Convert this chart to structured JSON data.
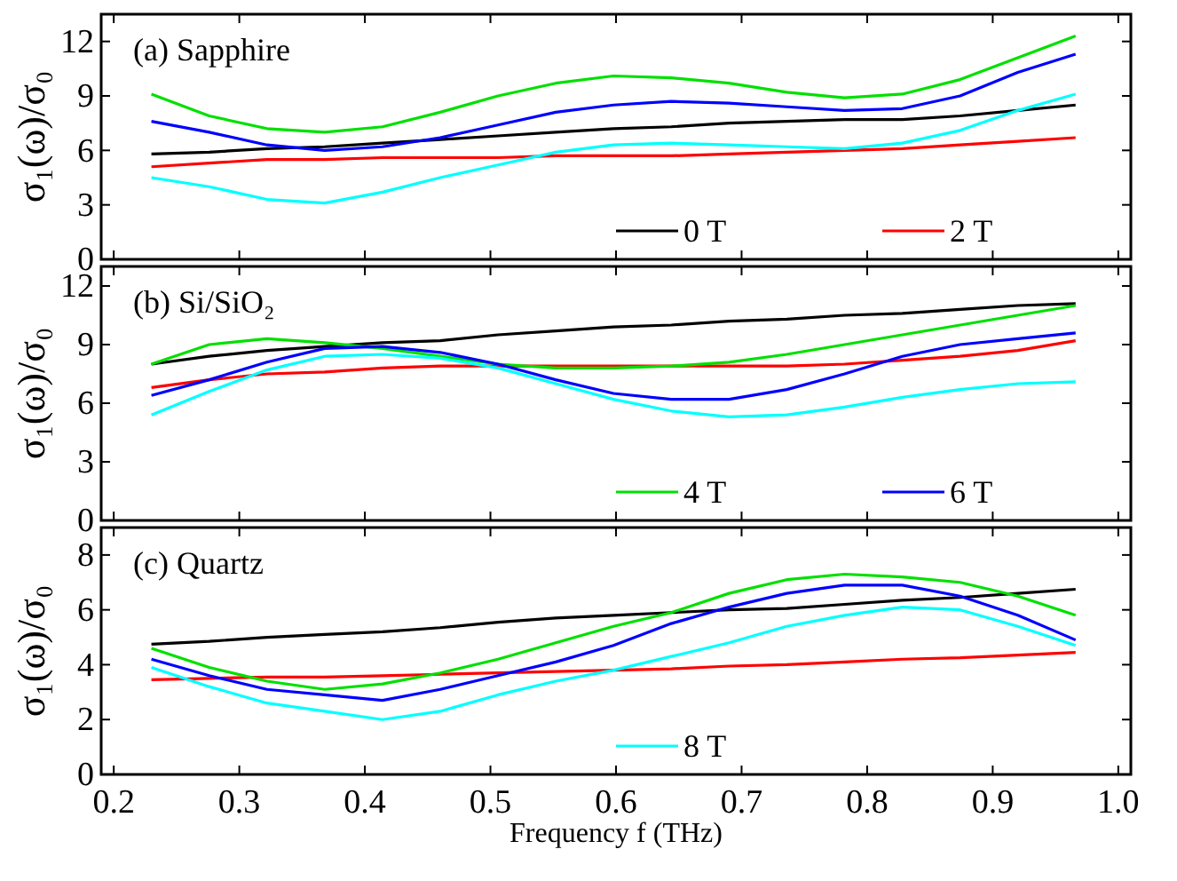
{
  "chart_data": [
    {
      "type": "line",
      "title": "(a)  Sapphire",
      "ylabel": "σ₁(ω)/σ₀",
      "x": [
        0.23,
        0.276,
        0.322,
        0.368,
        0.414,
        0.46,
        0.506,
        0.552,
        0.598,
        0.644,
        0.69,
        0.736,
        0.782,
        0.828,
        0.874,
        0.92,
        0.966
      ],
      "xlim": [
        0.19,
        1.01
      ],
      "xticks": [
        0.2,
        0.3,
        0.4,
        0.5,
        0.6,
        0.7,
        0.8,
        0.9,
        1
      ],
      "ylim": [
        0,
        13.5
      ],
      "yticks": [
        0,
        3,
        6,
        9,
        12
      ],
      "tick_labels": "y",
      "legend": "bottom right",
      "grid": false,
      "marker": "none",
      "line_style": "solid",
      "series": [
        {
          "name": "0 T",
          "color": "#000000",
          "values": [
            5.8,
            5.9,
            6.1,
            6.2,
            6.4,
            6.6,
            6.8,
            7.0,
            7.2,
            7.3,
            7.5,
            7.6,
            7.7,
            7.7,
            7.9,
            8.2,
            8.5
          ]
        },
        {
          "name": "2 T",
          "color": "#ff0000",
          "values": [
            5.1,
            5.3,
            5.5,
            5.5,
            5.6,
            5.6,
            5.6,
            5.7,
            5.7,
            5.7,
            5.8,
            5.9,
            6.0,
            6.1,
            6.3,
            6.5,
            6.7
          ]
        },
        {
          "color": "#00e000",
          "values": [
            9.1,
            7.9,
            7.2,
            7.0,
            7.3,
            8.1,
            9.0,
            9.7,
            10.1,
            10.0,
            9.7,
            9.2,
            8.9,
            9.1,
            9.9,
            11.1,
            12.3
          ]
        },
        {
          "color": "#0000ff",
          "values": [
            7.6,
            7.0,
            6.3,
            6.0,
            6.2,
            6.7,
            7.4,
            8.1,
            8.5,
            8.7,
            8.6,
            8.4,
            8.2,
            8.3,
            9.0,
            10.3,
            11.3
          ]
        },
        {
          "color": "#00ffff",
          "values": [
            4.5,
            4.0,
            3.3,
            3.1,
            3.7,
            4.5,
            5.2,
            5.9,
            6.3,
            6.4,
            6.3,
            6.2,
            6.1,
            6.4,
            7.1,
            8.2,
            9.1
          ]
        }
      ]
    },
    {
      "type": "line",
      "title": "(b)  Si/SiO₂",
      "ylabel": "σ₁(ω)/σ₀",
      "x": [
        0.23,
        0.276,
        0.322,
        0.368,
        0.414,
        0.46,
        0.506,
        0.552,
        0.598,
        0.644,
        0.69,
        0.736,
        0.782,
        0.828,
        0.874,
        0.92,
        0.966
      ],
      "xlim": [
        0.19,
        1.01
      ],
      "xticks": [
        0.2,
        0.3,
        0.4,
        0.5,
        0.6,
        0.7,
        0.8,
        0.9,
        1
      ],
      "ylim": [
        0,
        13
      ],
      "yticks": [
        0,
        3,
        6,
        9,
        12
      ],
      "tick_labels": "y",
      "legend": "bottom right",
      "grid": false,
      "marker": "none",
      "line_style": "solid",
      "series": [
        {
          "color": "#000000",
          "values": [
            8.0,
            8.4,
            8.7,
            8.9,
            9.1,
            9.2,
            9.5,
            9.7,
            9.9,
            10.0,
            10.2,
            10.3,
            10.5,
            10.6,
            10.8,
            11.0,
            11.1
          ]
        },
        {
          "color": "#ff0000",
          "values": [
            6.8,
            7.2,
            7.5,
            7.6,
            7.8,
            7.9,
            7.9,
            7.9,
            7.9,
            7.9,
            7.9,
            7.9,
            8.0,
            8.2,
            8.4,
            8.7,
            9.2
          ]
        },
        {
          "name": "4 T",
          "color": "#00e000",
          "values": [
            8.0,
            9.0,
            9.3,
            9.1,
            8.8,
            8.4,
            8.0,
            7.8,
            7.8,
            7.9,
            8.1,
            8.5,
            9.0,
            9.5,
            10.0,
            10.5,
            11.0
          ]
        },
        {
          "name": "6 T",
          "color": "#0000ff",
          "values": [
            6.4,
            7.2,
            8.1,
            8.8,
            8.9,
            8.6,
            8.0,
            7.2,
            6.5,
            6.2,
            6.2,
            6.7,
            7.5,
            8.4,
            9.0,
            9.3,
            9.6
          ]
        },
        {
          "color": "#00ffff",
          "values": [
            5.4,
            6.6,
            7.7,
            8.4,
            8.5,
            8.3,
            7.8,
            7.0,
            6.2,
            5.6,
            5.3,
            5.4,
            5.8,
            6.3,
            6.7,
            7.0,
            7.1
          ]
        }
      ]
    },
    {
      "type": "line",
      "title": "(c) Quartz",
      "ylabel": "σ₁(ω)/σ₀",
      "xlabel": "Frequency f (THz)",
      "x": [
        0.23,
        0.276,
        0.322,
        0.368,
        0.414,
        0.46,
        0.506,
        0.552,
        0.598,
        0.644,
        0.69,
        0.736,
        0.782,
        0.828,
        0.874,
        0.92,
        0.966
      ],
      "xlim": [
        0.19,
        1.01
      ],
      "xticks": [
        0.2,
        0.3,
        0.4,
        0.5,
        0.6,
        0.7,
        0.8,
        0.9,
        {
          "value": 1.0,
          "label": "1.0"
        }
      ],
      "ylim": [
        0,
        9
      ],
      "yticks": [
        0,
        2,
        4,
        6,
        8
      ],
      "legend": "bottom right",
      "grid": false,
      "marker": "none",
      "line_style": "solid",
      "series": [
        {
          "color": "#000000",
          "values": [
            4.75,
            4.85,
            5.0,
            5.1,
            5.2,
            5.35,
            5.55,
            5.7,
            5.8,
            5.9,
            6.0,
            6.05,
            6.2,
            6.35,
            6.45,
            6.6,
            6.75
          ]
        },
        {
          "color": "#ff0000",
          "values": [
            3.45,
            3.5,
            3.55,
            3.55,
            3.6,
            3.65,
            3.7,
            3.75,
            3.8,
            3.85,
            3.95,
            4.0,
            4.1,
            4.2,
            4.25,
            4.35,
            4.45
          ]
        },
        {
          "color": "#00e000",
          "values": [
            4.6,
            3.9,
            3.4,
            3.1,
            3.3,
            3.7,
            4.2,
            4.8,
            5.4,
            5.9,
            6.6,
            7.1,
            7.3,
            7.2,
            7.0,
            6.5,
            5.8
          ]
        },
        {
          "color": "#0000ff",
          "values": [
            4.2,
            3.6,
            3.1,
            2.9,
            2.7,
            3.1,
            3.6,
            4.1,
            4.7,
            5.5,
            6.1,
            6.6,
            6.9,
            6.9,
            6.5,
            5.8,
            4.9
          ]
        },
        {
          "name": "8 T",
          "color": "#00ffff",
          "values": [
            3.9,
            3.2,
            2.6,
            2.3,
            2.0,
            2.3,
            2.9,
            3.4,
            3.8,
            4.3,
            4.8,
            5.4,
            5.8,
            6.1,
            6.0,
            5.4,
            4.7
          ]
        }
      ]
    }
  ]
}
